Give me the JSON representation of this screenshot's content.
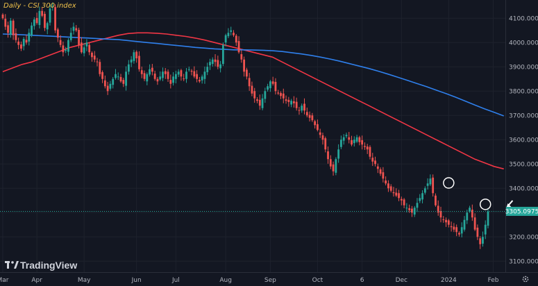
{
  "chart_data": {
    "type": "candlestick",
    "title": "Daily - CSI 300 index",
    "brand": "TradingView",
    "y_range": [
      3055,
      4175
    ],
    "y_ticks": [
      {
        "value": 4100,
        "label": "4100.0000"
      },
      {
        "value": 4000,
        "label": "4000.0000"
      },
      {
        "value": 3900,
        "label": "3900.0000"
      },
      {
        "value": 3800,
        "label": "3800.0000"
      },
      {
        "value": 3700,
        "label": "3700.0000"
      },
      {
        "value": 3600,
        "label": "3600.0000"
      },
      {
        "value": 3500,
        "label": "3500.0000"
      },
      {
        "value": 3400,
        "label": "3400.0000"
      },
      {
        "value": 3300,
        "label": "3300.0000"
      },
      {
        "value": 3200,
        "label": "3200.0000"
      },
      {
        "value": 3100,
        "label": "3100.0000"
      }
    ],
    "x_ticks": [
      {
        "label": "Mar",
        "t": 0
      },
      {
        "label": "Apr",
        "t": 13
      },
      {
        "label": "May",
        "t": 31
      },
      {
        "label": "Jun",
        "t": 51
      },
      {
        "label": "Jul",
        "t": 66
      },
      {
        "label": "Aug",
        "t": 85
      },
      {
        "label": "Sep",
        "t": 102
      },
      {
        "label": "Oct",
        "t": 120
      },
      {
        "label": "6",
        "t": 137
      },
      {
        "label": "Dec",
        "t": 152
      },
      {
        "label": "2024",
        "t": 170
      },
      {
        "label": "Feb",
        "t": 187
      }
    ],
    "last_price": {
      "value": 3305.0975,
      "label": "3305.0975"
    },
    "close_series": [
      4100,
      4065,
      4040,
      4090,
      4030,
      4010,
      3990,
      3975,
      4015,
      4000,
      4040,
      4070,
      4095,
      4080,
      4130,
      4110,
      4060,
      4080,
      4140,
      4150,
      4050,
      4020,
      3990,
      3960,
      3970,
      4010,
      4040,
      4065,
      4050,
      3990,
      3960,
      3980,
      4000,
      3960,
      3940,
      3930,
      3920,
      3870,
      3850,
      3820,
      3800,
      3830,
      3850,
      3870,
      3860,
      3840,
      3830,
      3880,
      3910,
      3930,
      3960,
      3935,
      3890,
      3870,
      3850,
      3870,
      3890,
      3880,
      3850,
      3840,
      3860,
      3880,
      3870,
      3850,
      3830,
      3860,
      3870,
      3880,
      3860,
      3850,
      3880,
      3890,
      3880,
      3860,
      3850,
      3840,
      3860,
      3880,
      3900,
      3920,
      3930,
      3920,
      3900,
      3910,
      3990,
      4030,
      4040,
      4050,
      4030,
      4000,
      3960,
      3930,
      3880,
      3860,
      3820,
      3790,
      3770,
      3760,
      3740,
      3770,
      3800,
      3820,
      3840,
      3830,
      3800,
      3790,
      3780,
      3770,
      3760,
      3755,
      3760,
      3750,
      3730,
      3720,
      3740,
      3720,
      3700,
      3690,
      3680,
      3660,
      3640,
      3620,
      3600,
      3560,
      3520,
      3490,
      3470,
      3520,
      3560,
      3600,
      3610,
      3620,
      3600,
      3580,
      3600,
      3610,
      3590,
      3580,
      3570,
      3560,
      3530,
      3510,
      3500,
      3480,
      3460,
      3440,
      3420,
      3400,
      3390,
      3380,
      3370,
      3360,
      3350,
      3330,
      3320,
      3310,
      3300,
      3320,
      3340,
      3360,
      3380,
      3400,
      3420,
      3440,
      3380,
      3330,
      3300,
      3280,
      3270,
      3260,
      3250,
      3240,
      3230,
      3220,
      3210,
      3240,
      3270,
      3300,
      3320,
      3280,
      3230,
      3200,
      3170,
      3200,
      3250,
      3305
    ],
    "series": [
      {
        "name": "",
        "color": "#f23645",
        "values": [
          3880,
          3895,
          3910,
          3920,
          3935,
          3950,
          3965,
          3980,
          3990,
          4000,
          4010,
          4020,
          4030,
          4037,
          4040,
          4040,
          4038,
          4035,
          4030,
          4025,
          4018,
          4010,
          4000,
          3990,
          3980,
          3970,
          3960,
          3950,
          3940,
          3920,
          3900,
          3880,
          3860,
          3840,
          3820,
          3800,
          3780,
          3760,
          3740,
          3720,
          3700,
          3680,
          3660,
          3640,
          3620,
          3600,
          3580,
          3560,
          3540,
          3520,
          3505,
          3490,
          3480
        ]
      },
      {
        "name": "",
        "color": "#2f80ed",
        "values": [
          4035,
          4034,
          4032,
          4030,
          4028,
          4026,
          4024,
          4022,
          4020,
          4018,
          4016,
          4014,
          4012,
          4008,
          4004,
          4000,
          3996,
          3992,
          3988,
          3984,
          3980,
          3977,
          3974,
          3972,
          3970,
          3970,
          3969,
          3968,
          3966,
          3963,
          3958,
          3953,
          3947,
          3940,
          3932,
          3923,
          3913,
          3903,
          3893,
          3882,
          3870,
          3857,
          3844,
          3831,
          3818,
          3804,
          3790,
          3775,
          3759,
          3743,
          3727,
          3713,
          3698
        ]
      }
    ],
    "ma_t_start": 0,
    "ma_t_end": 191,
    "highlight_markers": [
      {
        "t": 170,
        "value": 3422
      },
      {
        "t": 184,
        "value": 3334
      }
    ],
    "arrow_marker": {
      "t": 192,
      "value": 3318
    }
  }
}
